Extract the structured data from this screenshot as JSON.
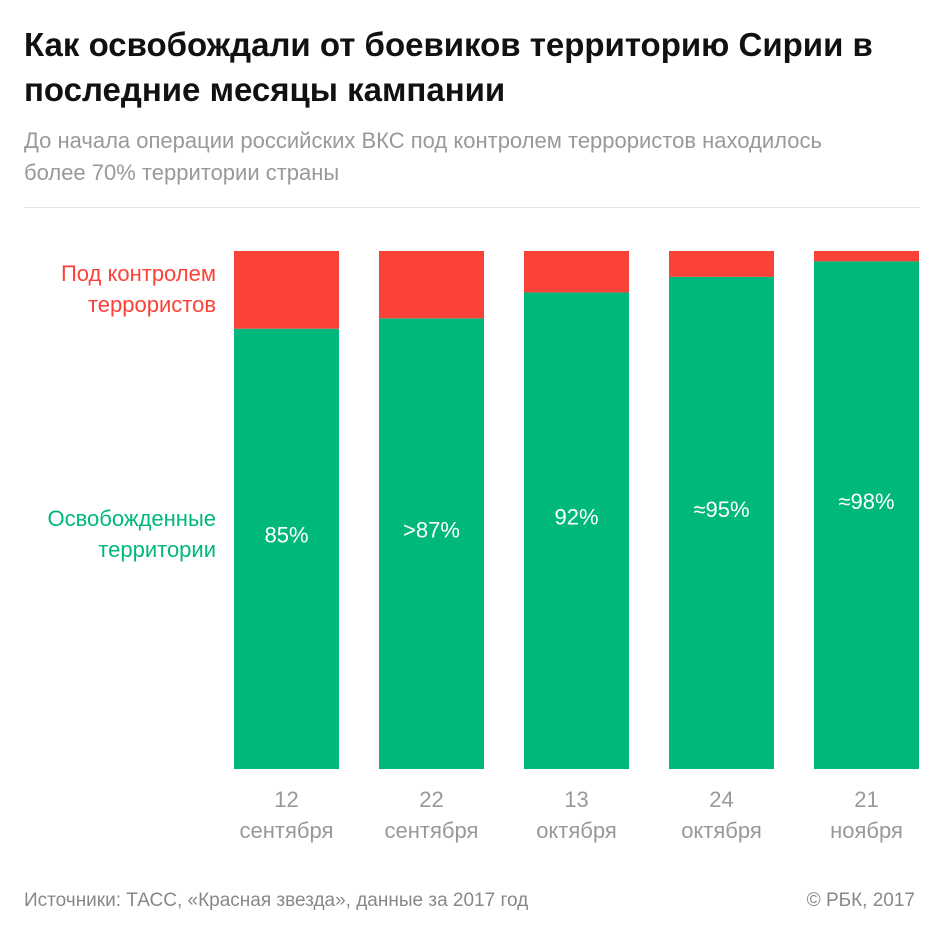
{
  "chart_data": {
    "type": "stacked_bar",
    "title": "Как освобождали от боевиков территорию Сирии в последние месяцы кампании",
    "subtitle": "До начала операции российских ВКС под контролем террористов находилось более 70% территории страны",
    "categories": [
      [
        "12",
        "сентября"
      ],
      [
        "22",
        "сентября"
      ],
      [
        "13",
        "октября"
      ],
      [
        "24",
        "октября"
      ],
      [
        "21",
        "ноября"
      ]
    ],
    "series": [
      {
        "name": "Освобожденные территории",
        "color": "#00b87c",
        "values": [
          85,
          87,
          92,
          95,
          98
        ],
        "value_labels": [
          "85%",
          ">87%",
          "92%",
          "≈95%",
          "≈98%"
        ]
      },
      {
        "name": "Под контролем террористов",
        "color": "#fb4238",
        "values": [
          15,
          13,
          8,
          5,
          2
        ]
      }
    ],
    "ylim": [
      0,
      100
    ],
    "source": "Источники: ТАСС, «Красная звезда», данные за 2017 год",
    "credit": "© РБК, 2017"
  }
}
